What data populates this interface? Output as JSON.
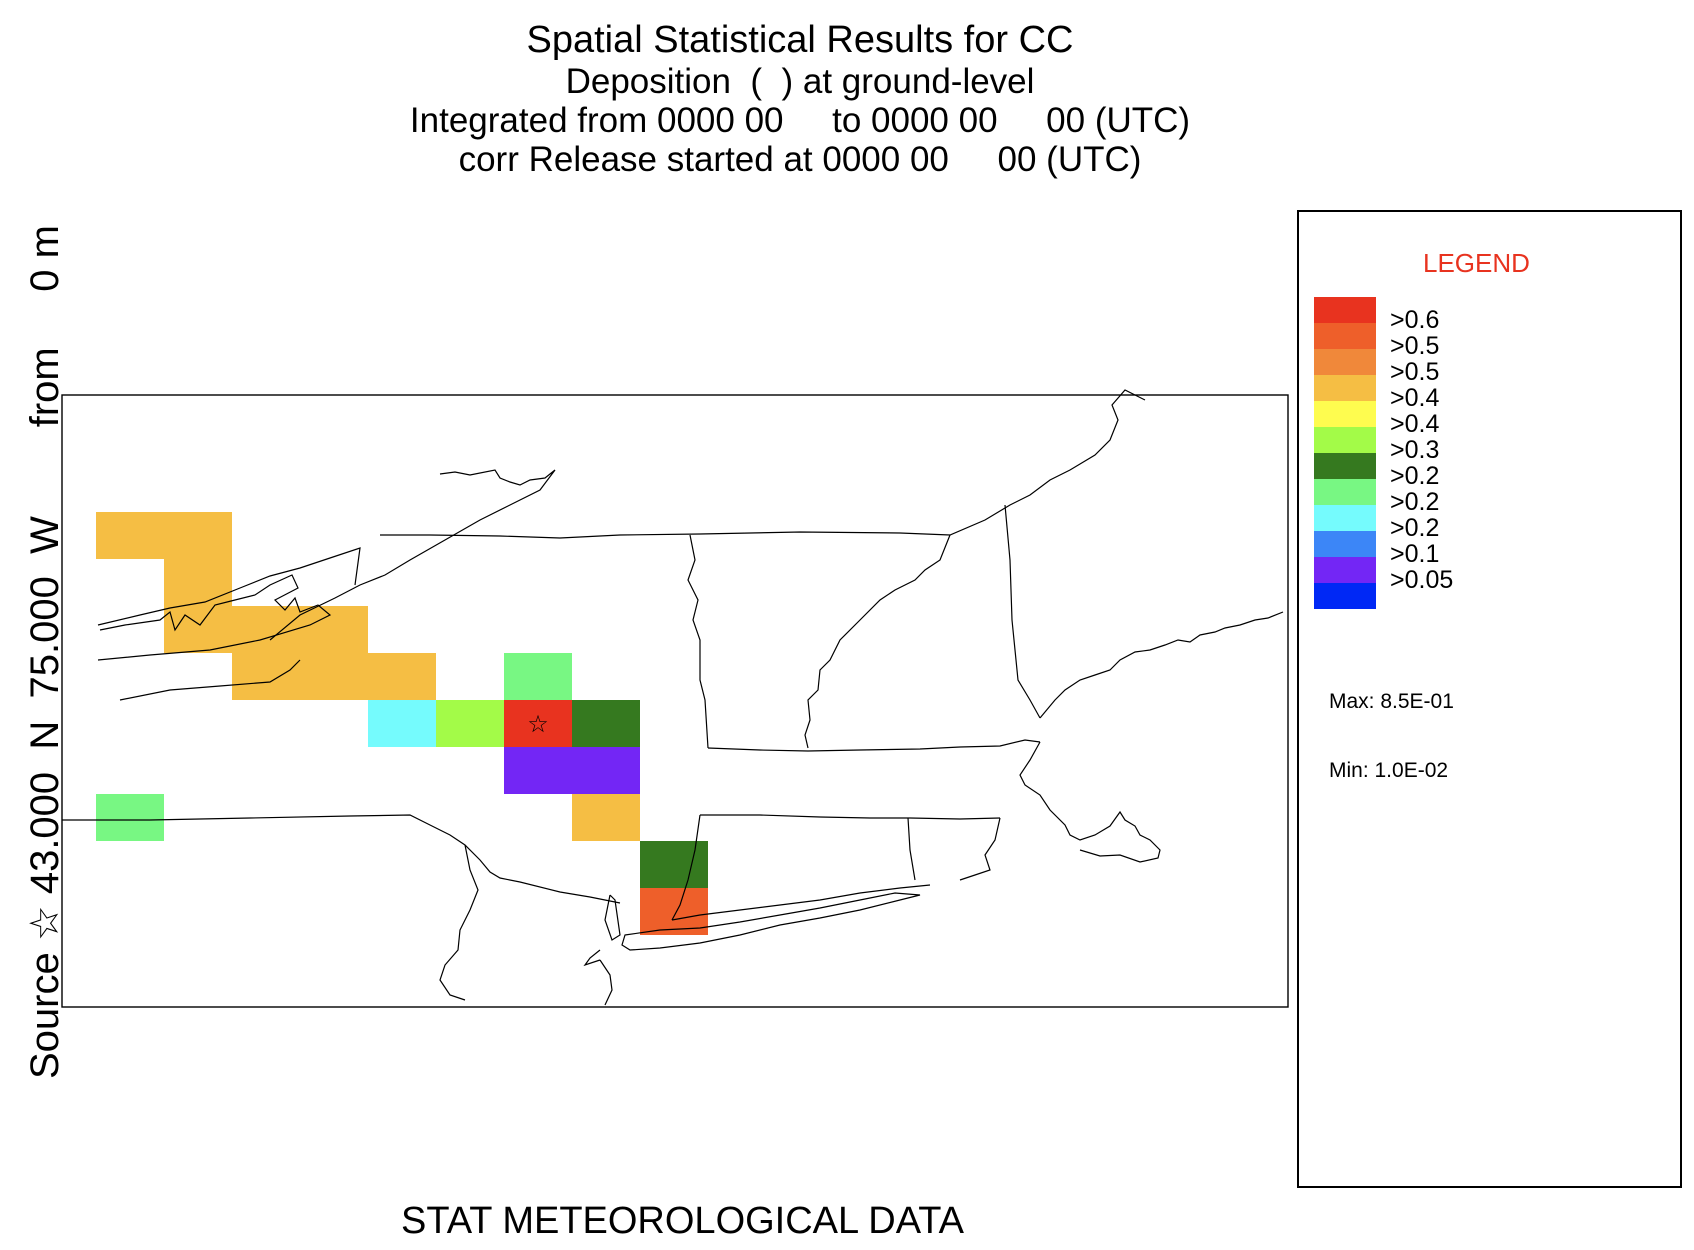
{
  "title": {
    "line1": "Spatial Statistical Results for CC",
    "line2": "Deposition  (  ) at ground-level",
    "line3": "Integrated from 0000 00     to 0000 00     00 (UTC)",
    "line4": "corr Release started at 0000 00     00 (UTC)"
  },
  "side_label": "Source ☆ 43.000  N  75.000  W        from     0 m",
  "source_marker": {
    "lat": 43.0,
    "lon": -75.0,
    "symbol": "☆"
  },
  "legend": {
    "title": "LEGEND",
    "title_color": "#e8331f",
    "items": [
      {
        "label": ">0.6",
        "color": "#e8331f"
      },
      {
        "label": ">0.5",
        "color": "#ee5f2a"
      },
      {
        "label": ">0.5",
        "color": "#f0883a"
      },
      {
        "label": ">0.4",
        "color": "#f5be44"
      },
      {
        "label": ">0.4",
        "color": "#fefc4f"
      },
      {
        "label": ">0.3",
        "color": "#a3fb48"
      },
      {
        "label": ">0.2",
        "color": "#35791f"
      },
      {
        "label": ">0.2",
        "color": "#78f783"
      },
      {
        "label": ">0.2",
        "color": "#75fbfd"
      },
      {
        "label": ">0.1",
        "color": "#3c86f7"
      },
      {
        "label": ">0.05",
        "color": "#7326f5"
      },
      {
        "label": "",
        "color": "#0028f5"
      }
    ],
    "max": "Max: 8.5E-01",
    "min": "Min: 1.0E-02"
  },
  "grid_cells": [
    {
      "row": 0,
      "col": 0,
      "color": "#f5be44"
    },
    {
      "row": 0,
      "col": 1,
      "color": "#f5be44"
    },
    {
      "row": 1,
      "col": 1,
      "color": "#f5be44"
    },
    {
      "row": 2,
      "col": 1,
      "color": "#f5be44"
    },
    {
      "row": 2,
      "col": 2,
      "color": "#f5be44"
    },
    {
      "row": 2,
      "col": 3,
      "color": "#f5be44"
    },
    {
      "row": 3,
      "col": 2,
      "color": "#f5be44"
    },
    {
      "row": 3,
      "col": 3,
      "color": "#f5be44"
    },
    {
      "row": 3,
      "col": 4,
      "color": "#f5be44"
    },
    {
      "row": 3,
      "col": 6,
      "color": "#78f783"
    },
    {
      "row": 4,
      "col": 4,
      "color": "#75fbfd"
    },
    {
      "row": 4,
      "col": 5,
      "color": "#a3fb48"
    },
    {
      "row": 4,
      "col": 6,
      "color": "#e8331f"
    },
    {
      "row": 4,
      "col": 7,
      "color": "#35791f"
    },
    {
      "row": 5,
      "col": 6,
      "color": "#7326f5"
    },
    {
      "row": 5,
      "col": 7,
      "color": "#7326f5"
    },
    {
      "row": 6,
      "col": 0,
      "color": "#78f783"
    },
    {
      "row": 6,
      "col": 7,
      "color": "#f5be44"
    },
    {
      "row": 7,
      "col": 8,
      "color": "#35791f"
    },
    {
      "row": 8,
      "col": 8,
      "color": "#ee5f2a"
    }
  ],
  "footer": "STAT METEOROLOGICAL DATA"
}
